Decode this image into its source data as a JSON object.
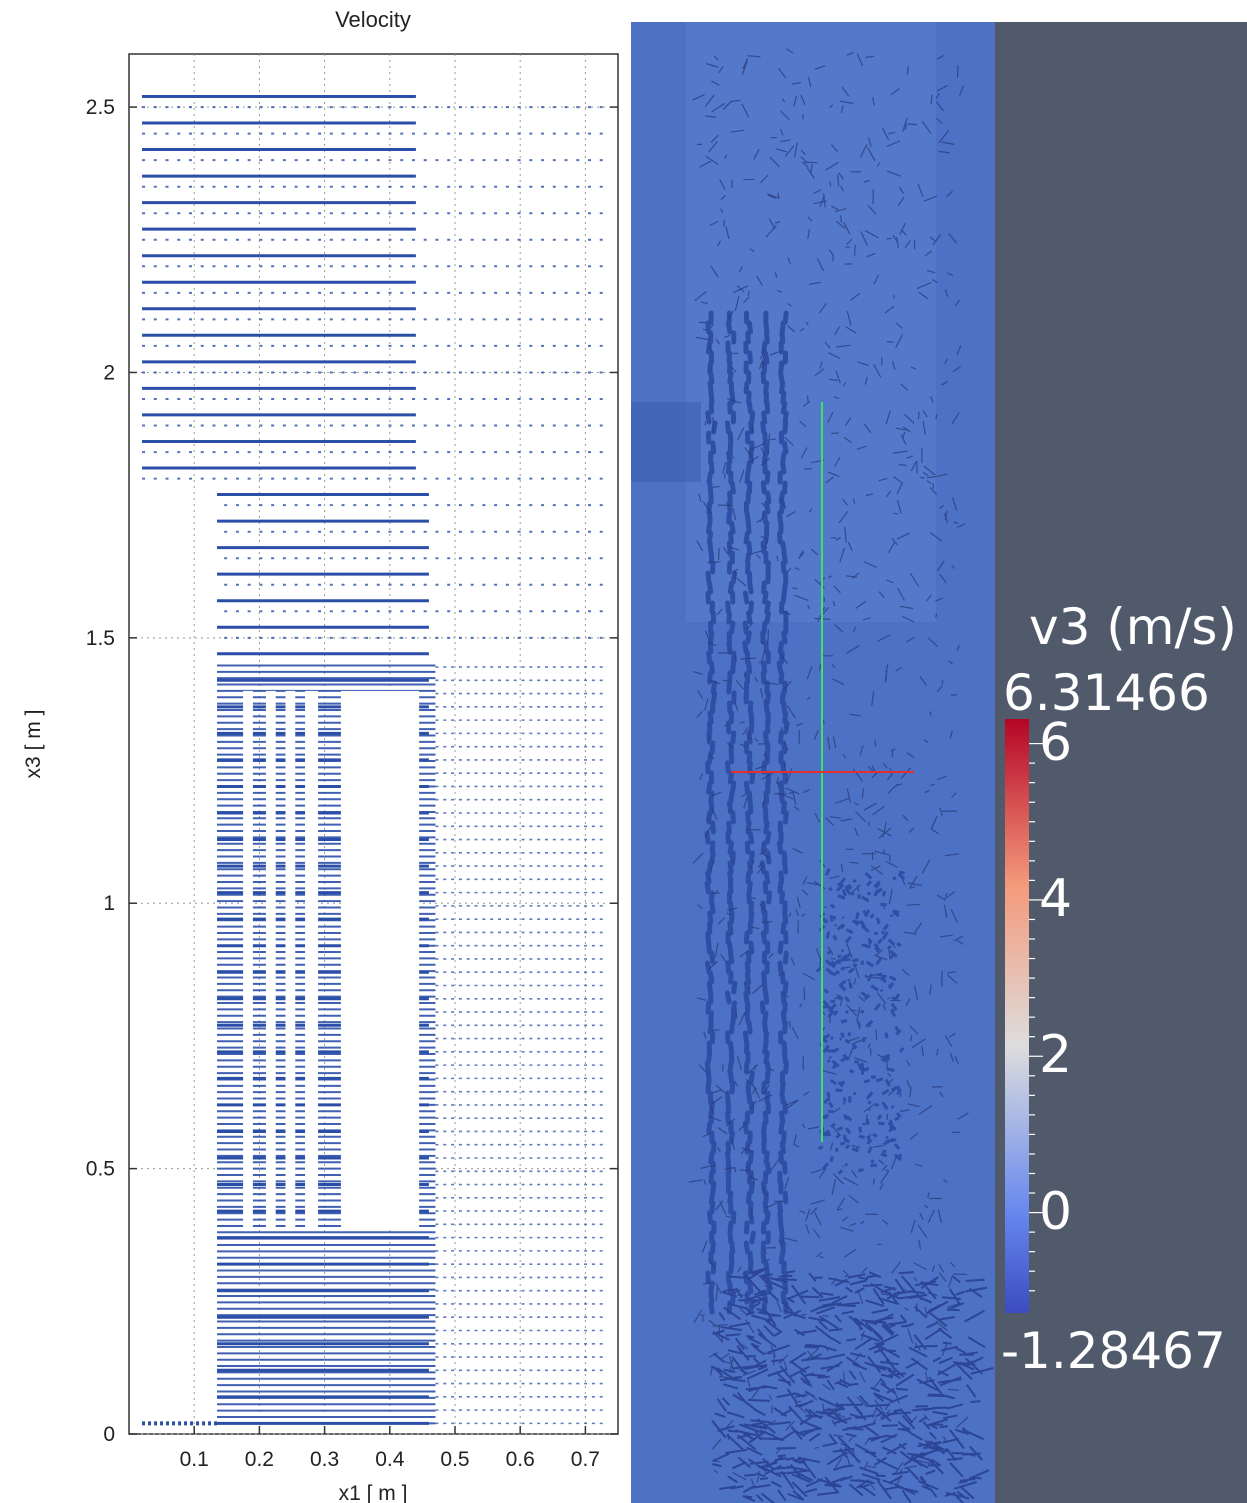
{
  "chart_data": [
    {
      "type": "vector-field",
      "title": "Velocity",
      "xlabel": "x1 [ m ]",
      "ylabel": "x3 [ m ]",
      "xlim": [
        0,
        0.75
      ],
      "ylim": [
        0,
        2.6
      ],
      "xticks": [
        0.1,
        0.2,
        0.3,
        0.4,
        0.5,
        0.6,
        0.7
      ],
      "yticks": [
        0,
        0.5,
        1,
        1.5,
        2,
        2.5
      ],
      "grid": true,
      "vector_color": "#2b4fa8",
      "obstacles": [
        {
          "x1": [
            0.175,
            0.19
          ],
          "x3": [
            0.39,
            1.4
          ]
        },
        {
          "x1": [
            0.21,
            0.225
          ],
          "x3": [
            0.39,
            1.4
          ]
        },
        {
          "x1": [
            0.24,
            0.255
          ],
          "x3": [
            0.39,
            1.4
          ]
        },
        {
          "x1": [
            0.27,
            0.29
          ],
          "x3": [
            0.39,
            1.4
          ]
        },
        {
          "x1": [
            0.325,
            0.445
          ],
          "x3": [
            0.39,
            1.4
          ]
        }
      ],
      "inlet_wall": {
        "x1": [
          0.0,
          0.135
        ],
        "x3": [
          0.02,
          1.78
        ]
      }
    },
    {
      "type": "heatmap",
      "colorbar": {
        "label": "v3 (m/s)",
        "max_label": "6.31466",
        "min_label": "-1.28467",
        "max": 6.31466,
        "min": -1.28467,
        "ticks": [
          "6",
          "4",
          "2",
          "0"
        ],
        "tick_values": [
          6,
          4,
          2,
          0
        ],
        "colors": [
          "#3b4cc0",
          "#8db0fe",
          "#dddddd",
          "#f49a7b",
          "#b40426"
        ]
      },
      "field_base_color": "#4d71c4",
      "probe_lines": {
        "vertical_color": "#3fe06a",
        "horizontal_color": "#e03030"
      }
    }
  ]
}
